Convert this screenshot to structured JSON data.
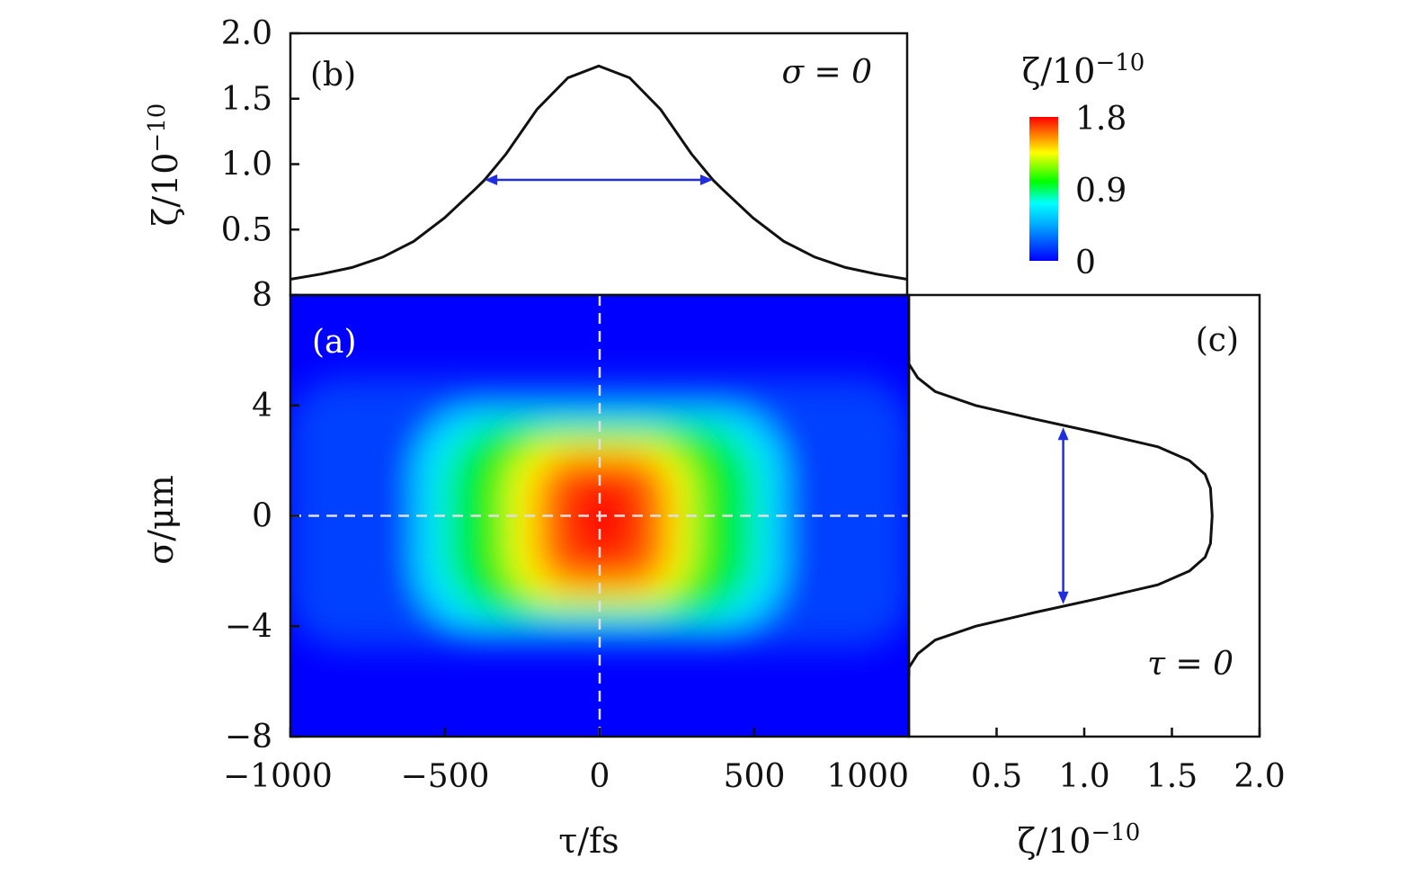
{
  "chart_data": [
    {
      "panel": "(a)",
      "type": "heatmap",
      "xlabel": "τ/fs",
      "ylabel": "σ/μm",
      "xlim": [
        -1000,
        1000
      ],
      "ylim": [
        -8,
        8
      ],
      "x_ticks": [
        "−1000",
        "−500",
        "0",
        "500",
        "1000"
      ],
      "x_tick_values": [
        -1000,
        -500,
        0,
        500,
        1000
      ],
      "y_ticks": [
        "8",
        "4",
        "0",
        "−4",
        "−8"
      ],
      "y_tick_values": [
        8,
        4,
        0,
        -4,
        -8
      ],
      "colorbar": {
        "label": "ζ/10",
        "label_exponent": "−10",
        "ticks": [
          "1.8",
          "0.9",
          "0"
        ],
        "tick_values": [
          1.8,
          0.9,
          0
        ],
        "range": [
          0,
          1.8
        ],
        "colormap": [
          "#0000ff",
          "#00aaff",
          "#00ffff",
          "#00ff00",
          "#ffff00",
          "#ff0000"
        ]
      },
      "peak_value": 1.75,
      "tau_half_width_fs": 370,
      "sigma_half_width_um": 3.2,
      "guide_lines": {
        "tau": 0,
        "sigma": 0
      }
    },
    {
      "panel": "(b)",
      "type": "line",
      "annotation": "σ = 0",
      "ylabel": "ζ/10",
      "ylabel_exponent": "−10",
      "xlim": [
        -1000,
        1000
      ],
      "ylim": [
        0,
        2.0
      ],
      "y_ticks": [
        "2.0",
        "1.5",
        "1.0",
        "0.5"
      ],
      "y_tick_values": [
        2.0,
        1.5,
        1.0,
        0.5
      ],
      "series": [
        {
          "x": [
            -1000,
            -900,
            -800,
            -700,
            -600,
            -500,
            -400,
            -370,
            -300,
            -200,
            -100,
            0,
            100,
            200,
            300,
            370,
            400,
            500,
            600,
            700,
            800,
            900,
            1000
          ],
          "y": [
            0.12,
            0.16,
            0.21,
            0.29,
            0.41,
            0.59,
            0.81,
            0.88,
            1.08,
            1.42,
            1.66,
            1.75,
            1.66,
            1.42,
            1.08,
            0.88,
            0.81,
            0.59,
            0.41,
            0.29,
            0.21,
            0.16,
            0.12
          ]
        }
      ],
      "fwhm_arrow": {
        "x_from": -370,
        "x_to": 370,
        "y": 0.88
      }
    },
    {
      "panel": "(c)",
      "type": "line",
      "annotation": "τ = 0",
      "xlabel": "ζ/10",
      "xlabel_exponent": "−10",
      "xlim": [
        0,
        2.0
      ],
      "ylim": [
        -8,
        8
      ],
      "x_ticks": [
        "0.5",
        "1.0",
        "1.5",
        "2.0"
      ],
      "x_tick_values": [
        0.5,
        1.0,
        1.5,
        2.0
      ],
      "series": [
        {
          "sigma": [
            5.8,
            5.5,
            5.0,
            4.5,
            4.0,
            3.5,
            3.0,
            2.5,
            2.0,
            1.5,
            1.0,
            0.0,
            -1.0,
            -1.5,
            -2.0,
            -2.5,
            -3.0,
            -3.5,
            -4.0,
            -4.5,
            -5.0,
            -5.5,
            -5.8
          ],
          "zeta": [
            0.0,
            0.0,
            0.05,
            0.15,
            0.38,
            0.72,
            1.08,
            1.42,
            1.6,
            1.69,
            1.72,
            1.73,
            1.72,
            1.69,
            1.6,
            1.42,
            1.08,
            0.72,
            0.38,
            0.15,
            0.05,
            0.0,
            0.0
          ]
        }
      ],
      "fwhm_arrow": {
        "sigma_from": 3.2,
        "sigma_to": -3.2,
        "zeta": 0.88
      }
    }
  ]
}
